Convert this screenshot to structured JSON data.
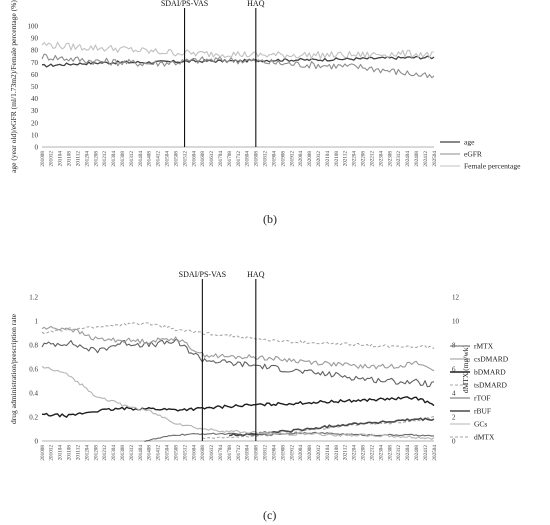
{
  "chart_data": [
    {
      "type": "line",
      "panel": "(b)",
      "ylabel": "age (year old)/eGFR (ml/1.73m2)/Female percentage (%)",
      "ylim": [
        0,
        100
      ],
      "yticks": [
        0,
        10,
        20,
        30,
        40,
        50,
        60,
        70,
        80,
        90,
        100
      ],
      "x_range": [
        "2010-08",
        "2025-04"
      ],
      "xtick_labels": [
        "201008",
        "201012",
        "201104",
        "201108",
        "201112",
        "201204",
        "201208",
        "201212",
        "201304",
        "201308",
        "201312",
        "201404",
        "201408",
        "201412",
        "201504",
        "201508",
        "201512",
        "201604",
        "201608",
        "201612",
        "201704",
        "201708",
        "201712",
        "201804",
        "201808",
        "201812",
        "201904",
        "201908",
        "201912",
        "202004",
        "202008",
        "202012",
        "202104",
        "202108",
        "202112",
        "202204",
        "202208",
        "202212",
        "202304",
        "202308",
        "202312",
        "202404",
        "202408",
        "202412",
        "202504"
      ],
      "vlines": [
        {
          "label": "SDAI/PS-VAS",
          "x": "2015-12"
        },
        {
          "label": "HAQ",
          "x": "2018-08"
        }
      ],
      "legend_position": "right",
      "series": [
        {
          "name": "age",
          "color": "#404040",
          "dash": "solid",
          "width": 1.3,
          "points": [
            [
              "2010-08",
              67
            ],
            [
              "2011-08",
              68.5
            ],
            [
              "2012-08",
              69.5
            ],
            [
              "2013-08",
              70
            ],
            [
              "2014-08",
              70
            ],
            [
              "2015-08",
              70.5
            ],
            [
              "2016-08",
              71
            ],
            [
              "2017-08",
              71
            ],
            [
              "2018-08",
              71.5
            ],
            [
              "2019-08",
              72
            ],
            [
              "2020-08",
              72
            ],
            [
              "2021-08",
              72.5
            ],
            [
              "2022-08",
              73
            ],
            [
              "2023-08",
              73.5
            ],
            [
              "2024-08",
              74
            ],
            [
              "2025-04",
              74
            ]
          ]
        },
        {
          "name": "eGFR",
          "color": "#8c8c8c",
          "dash": "solid",
          "width": 1.1,
          "points": [
            [
              "2010-08",
              75
            ],
            [
              "2011-08",
              73
            ],
            [
              "2012-08",
              71
            ],
            [
              "2013-08",
              70
            ],
            [
              "2014-08",
              69
            ],
            [
              "2015-08",
              70
            ],
            [
              "2016-08",
              72
            ],
            [
              "2017-08",
              72
            ],
            [
              "2018-08",
              71
            ],
            [
              "2019-08",
              69
            ],
            [
              "2020-08",
              68
            ],
            [
              "2021-08",
              67
            ],
            [
              "2022-08",
              66
            ],
            [
              "2023-08",
              63
            ],
            [
              "2024-08",
              60
            ],
            [
              "2025-04",
              57
            ]
          ]
        },
        {
          "name": "Female percentage",
          "color": "#c0c0c0",
          "dash": "solid",
          "width": 1.1,
          "points": [
            [
              "2010-08",
              85
            ],
            [
              "2011-08",
              83
            ],
            [
              "2012-08",
              82
            ],
            [
              "2013-08",
              81
            ],
            [
              "2014-08",
              79
            ],
            [
              "2015-08",
              78
            ],
            [
              "2016-08",
              77
            ],
            [
              "2017-08",
              77
            ],
            [
              "2018-08",
              76
            ],
            [
              "2019-08",
              76
            ],
            [
              "2020-08",
              76
            ],
            [
              "2021-08",
              76
            ],
            [
              "2022-08",
              76
            ],
            [
              "2023-08",
              77
            ],
            [
              "2024-08",
              77
            ],
            [
              "2025-04",
              76
            ]
          ]
        }
      ]
    },
    {
      "type": "line",
      "panel": "(c)",
      "ylabel": "drug administration/prescription rate",
      "ylabel_right": "dMTX (mg/wk)",
      "ylim": [
        0,
        1.2
      ],
      "yticks": [
        0,
        0.2,
        0.4,
        0.6,
        0.8,
        1,
        1.2
      ],
      "ylim_right": [
        0,
        12
      ],
      "yticks_right": [
        0,
        2,
        4,
        6,
        8,
        10,
        12
      ],
      "x_range": [
        "2010-08",
        "2025-04"
      ],
      "xtick_labels": [
        "201008",
        "201012",
        "201104",
        "201108",
        "201112",
        "201204",
        "201208",
        "201212",
        "201304",
        "201308",
        "201312",
        "201404",
        "201408",
        "201412",
        "201504",
        "201508",
        "201512",
        "201604",
        "201608",
        "201612",
        "201704",
        "201708",
        "201712",
        "201804",
        "201808",
        "201812",
        "201904",
        "201908",
        "201912",
        "202004",
        "202008",
        "202012",
        "202104",
        "202108",
        "202112",
        "202204",
        "202208",
        "202212",
        "202304",
        "202308",
        "202312",
        "202404",
        "202408",
        "202412",
        "202504"
      ],
      "vlines": [
        {
          "label": "SDAI/PS-VAS",
          "x": "2016-08"
        },
        {
          "label": "HAQ",
          "x": "2018-08"
        }
      ],
      "legend_position": "right",
      "series": [
        {
          "name": "rMTX",
          "color": "#606060",
          "dash": "solid",
          "width": 1.1,
          "axis": "left",
          "points": [
            [
              "2010-08",
              0.8
            ],
            [
              "2011-08",
              0.82
            ],
            [
              "2012-08",
              0.75
            ],
            [
              "2013-08",
              0.82
            ],
            [
              "2014-08",
              0.8
            ],
            [
              "2015-08",
              0.83
            ],
            [
              "2016-08",
              0.68
            ],
            [
              "2017-08",
              0.65
            ],
            [
              "2018-08",
              0.63
            ],
            [
              "2019-08",
              0.6
            ],
            [
              "2020-08",
              0.57
            ],
            [
              "2021-08",
              0.55
            ],
            [
              "2022-08",
              0.52
            ],
            [
              "2023-08",
              0.5
            ],
            [
              "2024-08",
              0.49
            ],
            [
              "2025-04",
              0.47
            ]
          ]
        },
        {
          "name": "csDMARD",
          "color": "#9a9a9a",
          "dash": "solid",
          "width": 1.1,
          "axis": "left",
          "points": [
            [
              "2010-08",
              0.94
            ],
            [
              "2011-08",
              0.94
            ],
            [
              "2012-08",
              0.85
            ],
            [
              "2013-08",
              0.84
            ],
            [
              "2014-08",
              0.83
            ],
            [
              "2015-08",
              0.86
            ],
            [
              "2016-08",
              0.72
            ],
            [
              "2017-08",
              0.7
            ],
            [
              "2018-08",
              0.7
            ],
            [
              "2019-08",
              0.68
            ],
            [
              "2020-08",
              0.66
            ],
            [
              "2021-08",
              0.64
            ],
            [
              "2022-08",
              0.62
            ],
            [
              "2023-08",
              0.62
            ],
            [
              "2024-08",
              0.65
            ],
            [
              "2025-04",
              0.6
            ]
          ]
        },
        {
          "name": "bDMARD",
          "color": "#1e1e1e",
          "dash": "solid",
          "width": 1.4,
          "axis": "left",
          "points": [
            [
              "2010-08",
              0.22
            ],
            [
              "2011-08",
              0.21
            ],
            [
              "2012-08",
              0.25
            ],
            [
              "2013-08",
              0.27
            ],
            [
              "2014-08",
              0.27
            ],
            [
              "2015-08",
              0.26
            ],
            [
              "2016-08",
              0.27
            ],
            [
              "2017-08",
              0.29
            ],
            [
              "2018-08",
              0.3
            ],
            [
              "2019-08",
              0.31
            ],
            [
              "2020-08",
              0.32
            ],
            [
              "2021-08",
              0.33
            ],
            [
              "2022-08",
              0.34
            ],
            [
              "2023-08",
              0.35
            ],
            [
              "2024-08",
              0.36
            ],
            [
              "2025-04",
              0.3
            ]
          ]
        },
        {
          "name": "tsDMARD",
          "color": "#a8a8a8",
          "dash": "dashed",
          "width": 1.1,
          "axis": "left",
          "points": [
            [
              "2016-08",
              0.02
            ],
            [
              "2017-08",
              0.03
            ],
            [
              "2018-08",
              0.04
            ],
            [
              "2019-08",
              0.06
            ],
            [
              "2020-08",
              0.09
            ],
            [
              "2021-08",
              0.12
            ],
            [
              "2022-08",
              0.14
            ],
            [
              "2023-08",
              0.15
            ],
            [
              "2024-08",
              0.17
            ],
            [
              "2025-04",
              0.2
            ]
          ]
        },
        {
          "name": "rTOF",
          "color": "#6a6a6a",
          "dash": "solid",
          "width": 1.1,
          "axis": "left",
          "points": [
            [
              "2014-06",
              0.0
            ],
            [
              "2015-08",
              0.05
            ],
            [
              "2016-08",
              0.06
            ],
            [
              "2017-08",
              0.06
            ],
            [
              "2018-08",
              0.05
            ],
            [
              "2019-08",
              0.06
            ],
            [
              "2020-08",
              0.07
            ],
            [
              "2021-08",
              0.06
            ],
            [
              "2022-08",
              0.05
            ],
            [
              "2023-08",
              0.05
            ],
            [
              "2024-08",
              0.05
            ],
            [
              "2025-04",
              0.04
            ]
          ]
        },
        {
          "name": "rBUF",
          "color": "#4a4a4a",
          "dash": "solid",
          "width": 1.6,
          "axis": "left",
          "points": [
            [
              "2017-08",
              0.05
            ],
            [
              "2018-08",
              0.06
            ],
            [
              "2019-08",
              0.08
            ],
            [
              "2020-08",
              0.1
            ],
            [
              "2021-08",
              0.13
            ],
            [
              "2022-08",
              0.15
            ],
            [
              "2023-08",
              0.16
            ],
            [
              "2024-08",
              0.18
            ],
            [
              "2025-04",
              0.18
            ]
          ]
        },
        {
          "name": "GCs",
          "color": "#b4b4b4",
          "dash": "solid",
          "width": 1.1,
          "axis": "left",
          "points": [
            [
              "2010-08",
              0.62
            ],
            [
              "2011-08",
              0.55
            ],
            [
              "2012-08",
              0.38
            ],
            [
              "2013-08",
              0.3
            ],
            [
              "2014-08",
              0.25
            ],
            [
              "2015-08",
              0.15
            ],
            [
              "2016-08",
              0.1
            ],
            [
              "2017-08",
              0.08
            ],
            [
              "2018-08",
              0.07
            ],
            [
              "2019-08",
              0.06
            ],
            [
              "2020-08",
              0.06
            ],
            [
              "2021-08",
              0.05
            ],
            [
              "2022-08",
              0.05
            ],
            [
              "2023-08",
              0.04
            ],
            [
              "2024-08",
              0.03
            ],
            [
              "2025-04",
              0.02
            ]
          ]
        },
        {
          "name": "dMTX",
          "color": "#a0a0a0",
          "dash": "dashed",
          "width": 1.0,
          "axis": "right",
          "points": [
            [
              "2010-08",
              9.0
            ],
            [
              "2011-08",
              9.3
            ],
            [
              "2012-08",
              9.5
            ],
            [
              "2013-08",
              9.7
            ],
            [
              "2014-08",
              9.8
            ],
            [
              "2015-08",
              9.3
            ],
            [
              "2016-08",
              9.0
            ],
            [
              "2017-08",
              8.8
            ],
            [
              "2018-08",
              8.5
            ],
            [
              "2019-08",
              8.3
            ],
            [
              "2020-08",
              8.2
            ],
            [
              "2021-08",
              8.1
            ],
            [
              "2022-08",
              8.0
            ],
            [
              "2023-08",
              7.9
            ],
            [
              "2024-08",
              7.9
            ],
            [
              "2025-04",
              7.8
            ]
          ]
        }
      ]
    }
  ]
}
